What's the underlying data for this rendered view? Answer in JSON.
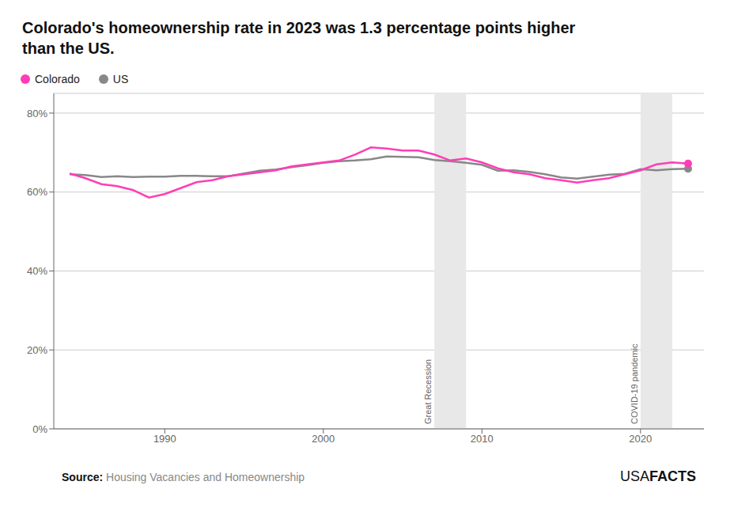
{
  "chart_data": {
    "type": "line",
    "title": "Colorado's homeownership rate in 2023 was 1.3 percentage points higher\nthan the US.",
    "x": [
      1984,
      1985,
      1986,
      1987,
      1988,
      1989,
      1990,
      1991,
      1992,
      1993,
      1994,
      1995,
      1996,
      1997,
      1998,
      1999,
      2000,
      2001,
      2002,
      2003,
      2004,
      2005,
      2006,
      2007,
      2008,
      2009,
      2010,
      2011,
      2012,
      2013,
      2014,
      2015,
      2016,
      2017,
      2018,
      2019,
      2020,
      2021,
      2022,
      2023
    ],
    "series": [
      {
        "name": "Colorado",
        "color": "#FF3EB5",
        "values": [
          64.7,
          63.5,
          62.0,
          61.5,
          60.5,
          58.6,
          59.5,
          61.0,
          62.5,
          63.0,
          64.0,
          64.5,
          65.0,
          65.5,
          66.5,
          67.0,
          67.5,
          68.0,
          69.5,
          71.3,
          71.0,
          70.5,
          70.5,
          69.5,
          68.0,
          68.5,
          67.5,
          66.0,
          65.0,
          64.5,
          63.5,
          63.0,
          62.4,
          63.0,
          63.5,
          64.5,
          65.5,
          67.0,
          67.5,
          67.2
        ]
      },
      {
        "name": "US",
        "color": "#888888",
        "values": [
          64.5,
          64.3,
          63.8,
          64.0,
          63.8,
          63.9,
          63.9,
          64.1,
          64.1,
          64.0,
          64.0,
          64.7,
          65.4,
          65.7,
          66.3,
          66.8,
          67.4,
          67.8,
          68.0,
          68.3,
          69.0,
          68.9,
          68.8,
          68.1,
          67.8,
          67.4,
          66.9,
          65.4,
          65.5,
          65.1,
          64.5,
          63.7,
          63.4,
          63.9,
          64.4,
          64.6,
          65.8,
          65.5,
          65.8,
          65.9
        ]
      }
    ],
    "annotations": [
      {
        "text": "Great Recession",
        "x_start": 2007,
        "x_end": 2009,
        "color": "#e8e8e8"
      },
      {
        "text": "COVID-19 pandemic",
        "x_start": 2020,
        "x_end": 2022,
        "color": "#e8e8e8"
      }
    ],
    "xlim": [
      1983,
      2024
    ],
    "xticks": [
      1990,
      2000,
      2010,
      2020
    ],
    "ylim": [
      0,
      85
    ],
    "yticks": [
      {
        "value": 0,
        "label": "0%"
      },
      {
        "value": 20,
        "label": "20%"
      },
      {
        "value": 40,
        "label": "40%"
      },
      {
        "value": 60,
        "label": "60%"
      },
      {
        "value": 80,
        "label": "80%"
      }
    ],
    "grid": true,
    "legend": "upper left",
    "source_label": "Source:",
    "source_text": "Housing Vacancies and Homeownership",
    "source_text_color": "#888888",
    "logo": [
      "USA",
      "FACTS"
    ]
  }
}
